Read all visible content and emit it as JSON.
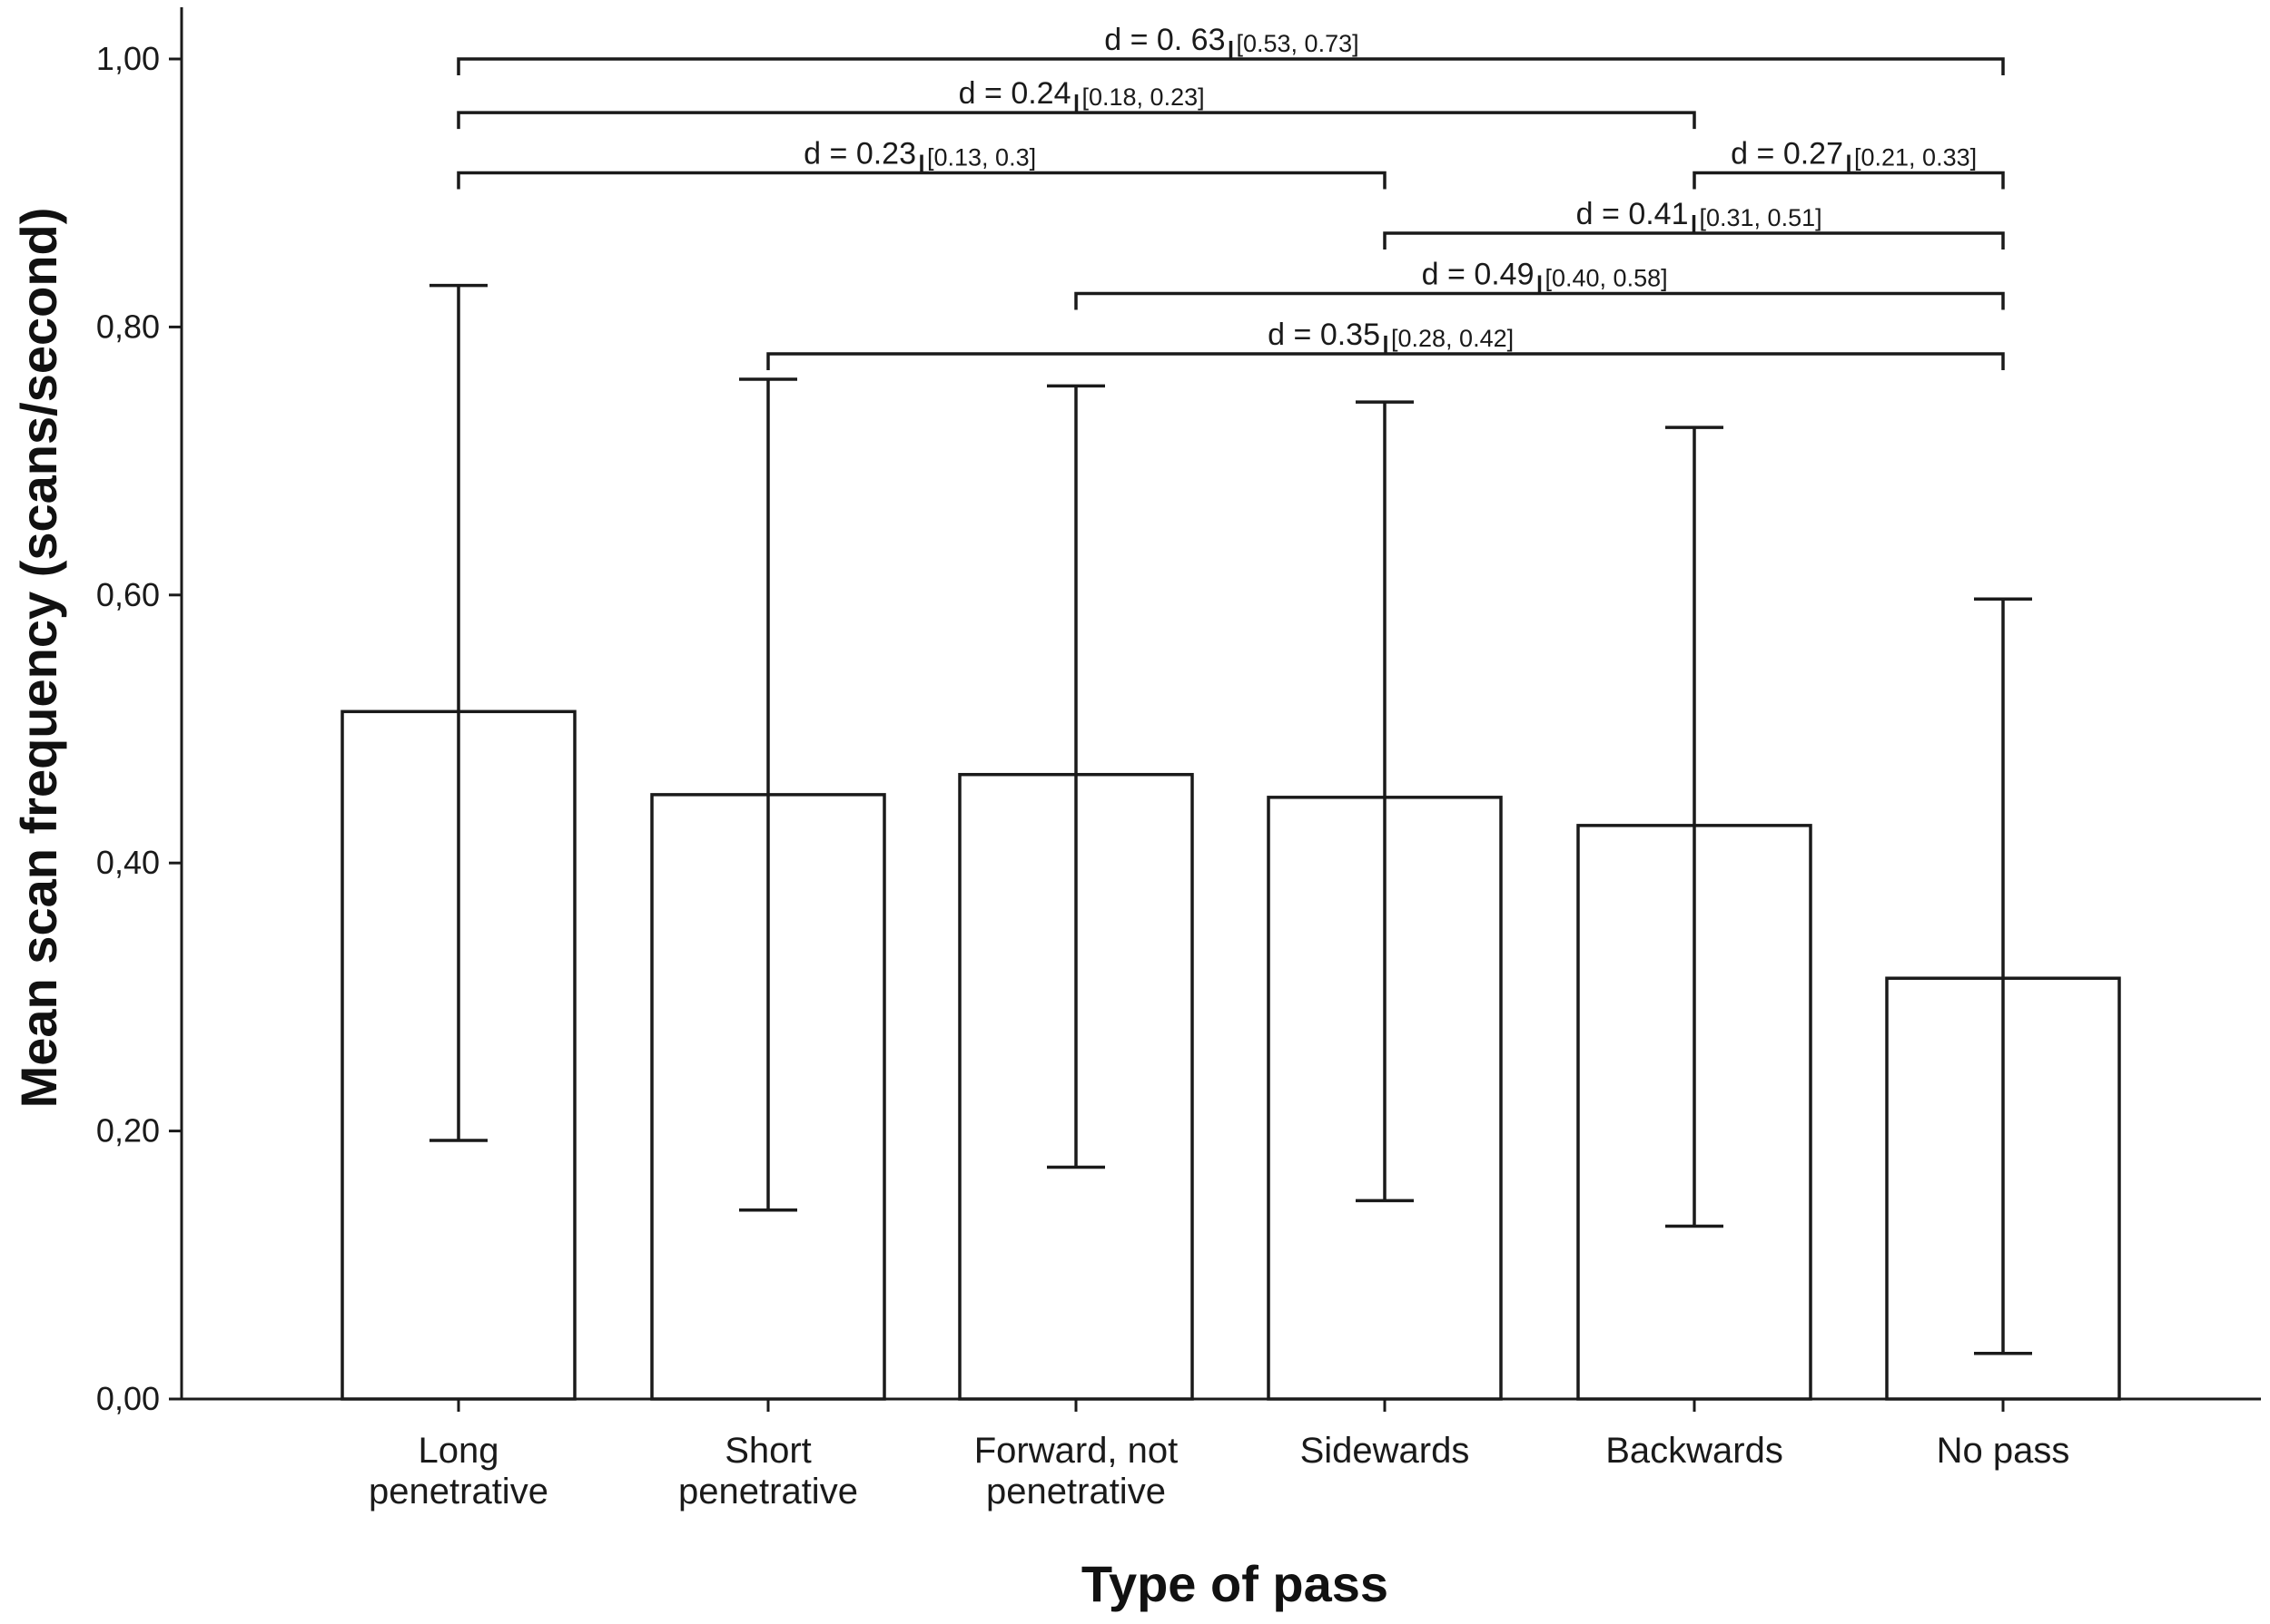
{
  "chart_data": {
    "type": "bar",
    "title": "",
    "xlabel": "Type of pass",
    "ylabel": "Mean scan frequency (scans/second)",
    "ylim": [
      0,
      1.0
    ],
    "yticks": [
      "0,00",
      "0,20",
      "0,40",
      "0,60",
      "0,80",
      "1,00"
    ],
    "ytick_values": [
      0,
      0.2,
      0.4,
      0.6,
      0.8,
      1.0
    ],
    "grid": false,
    "legend": "none",
    "categories": [
      [
        "Long",
        "penetrative"
      ],
      [
        "Short",
        "penetrative"
      ],
      [
        "Forward, not",
        "penetrative"
      ],
      [
        "Sidewards"
      ],
      [
        "Backwards"
      ],
      [
        "No pass"
      ]
    ],
    "values": [
      0.513,
      0.451,
      0.466,
      0.449,
      0.428,
      0.314
    ],
    "error_low": [
      0.193,
      0.141,
      0.173,
      0.148,
      0.129,
      0.034
    ],
    "error_high": [
      0.831,
      0.761,
      0.756,
      0.744,
      0.725,
      0.597
    ],
    "annotations": [
      {
        "from": 0,
        "to": 5,
        "y": 1.0,
        "d": "d = 0. 63",
        "ci": "[0.53, 0.73]"
      },
      {
        "from": 0,
        "to": 4,
        "y": 0.96,
        "d": "d = 0.24",
        "ci": "[0.18, 0.23]"
      },
      {
        "from": 4,
        "to": 5,
        "y": 0.915,
        "d": "d = 0.27",
        "ci": "[0.21, 0.33]"
      },
      {
        "from": 0,
        "to": 3,
        "y": 0.915,
        "d": "d = 0.23",
        "ci": "[0.13, 0.3]"
      },
      {
        "from": 3,
        "to": 5,
        "y": 0.87,
        "d": "d = 0.41",
        "ci": "[0.31, 0.51]"
      },
      {
        "from": 2,
        "to": 5,
        "y": 0.825,
        "d": "d = 0.49",
        "ci": "[0.40, 0.58]"
      },
      {
        "from": 1,
        "to": 5,
        "y": 0.78,
        "d": "d = 0.35",
        "ci": "[0.28, 0.42]"
      }
    ]
  }
}
